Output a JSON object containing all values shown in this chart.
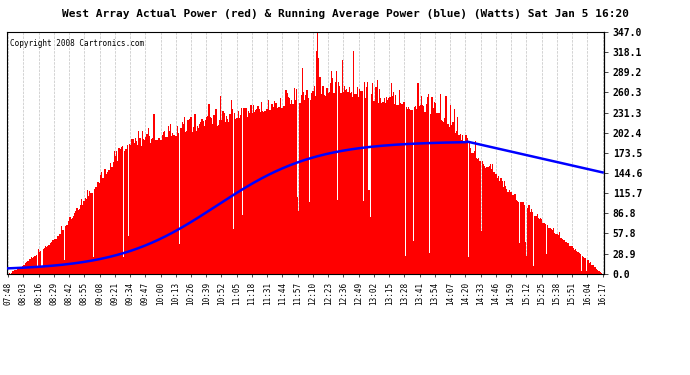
{
  "title": "West Array Actual Power (red) & Running Average Power (blue) (Watts) Sat Jan 5 16:20",
  "copyright": "Copyright 2008 Cartronics.com",
  "ylabel_right": [
    "347.0",
    "318.1",
    "289.2",
    "260.3",
    "231.3",
    "202.4",
    "173.5",
    "144.6",
    "115.7",
    "86.8",
    "57.8",
    "28.9",
    "0.0"
  ],
  "ymax": 347.0,
  "ymin": 0.0,
  "x_labels": [
    "07:48",
    "08:03",
    "08:16",
    "08:29",
    "08:42",
    "08:55",
    "09:08",
    "09:21",
    "09:34",
    "09:47",
    "10:00",
    "10:13",
    "10:26",
    "10:39",
    "10:52",
    "11:05",
    "11:18",
    "11:31",
    "11:44",
    "11:57",
    "12:10",
    "12:23",
    "12:36",
    "12:49",
    "13:02",
    "13:15",
    "13:28",
    "13:41",
    "13:54",
    "14:07",
    "14:20",
    "14:33",
    "14:46",
    "14:59",
    "15:12",
    "15:25",
    "15:38",
    "15:51",
    "16:04",
    "16:17"
  ],
  "bar_color": "#FF0000",
  "line_color": "#0000FF",
  "background_color": "#FFFFFF",
  "grid_color": "#BBBBBB",
  "fig_width": 6.9,
  "fig_height": 3.75
}
